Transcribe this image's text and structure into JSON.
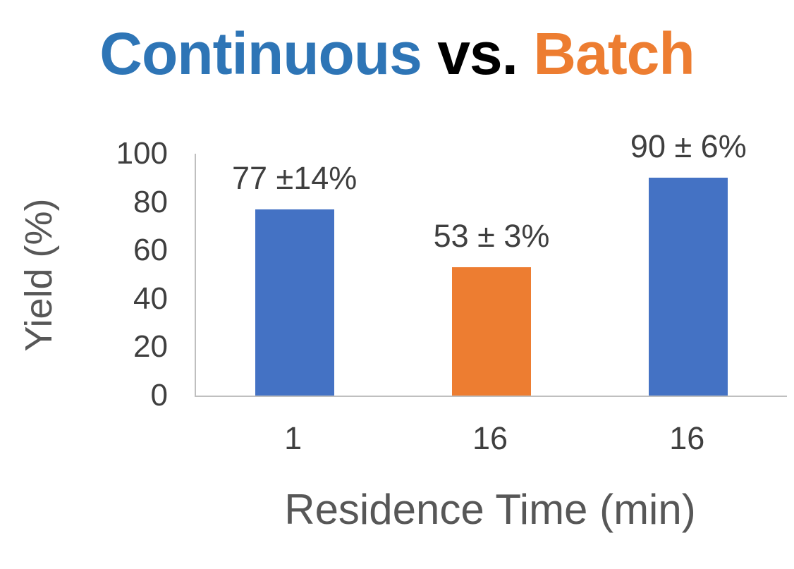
{
  "title": {
    "part1": "Continuous",
    "part2": " vs. ",
    "part3": "Batch"
  },
  "colors": {
    "title_blue": "#2E75B6",
    "title_black": "#000000",
    "title_orange": "#ED7D31",
    "bar_blue": "#4472C4",
    "bar_orange": "#ED7D31",
    "axis_line": "#BFBFBF",
    "text_gray": "#3F3F3F"
  },
  "chart_data": {
    "type": "bar",
    "title": "Continuous vs. Batch",
    "categories": [
      "1",
      "16",
      "16"
    ],
    "values": [
      77,
      53,
      90
    ],
    "errors": [
      14,
      3,
      6
    ],
    "bar_labels": [
      "77 ±14%",
      "53 ± 3%",
      "90 ± 6%"
    ],
    "bar_colors": [
      "#4472C4",
      "#ED7D31",
      "#4472C4"
    ],
    "xlabel": "Residence Time (min)",
    "ylabel": "Yield (%)",
    "ylim": [
      0,
      100
    ],
    "yticks": [
      0,
      20,
      40,
      60,
      80,
      100
    ],
    "grid": false,
    "legend_position": "none"
  }
}
